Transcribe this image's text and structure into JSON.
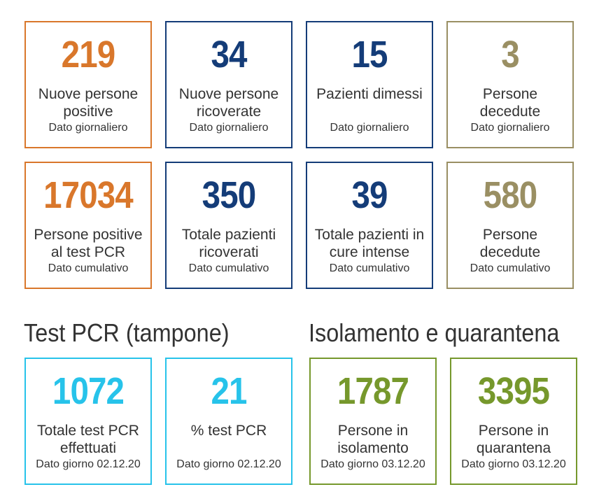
{
  "colors": {
    "orange": "#d9772b",
    "navy": "#143c78",
    "olive": "#9a8f63",
    "cyan": "#27c3ea",
    "green": "#76982c",
    "text": "#333333"
  },
  "daily": [
    {
      "value": "219",
      "label_line1": "Nuove persone",
      "label_line2": "positive",
      "sub": "Dato giornaliero"
    },
    {
      "value": "34",
      "label_line1": "Nuove persone",
      "label_line2": "ricoverate",
      "sub": "Dato giornaliero"
    },
    {
      "value": "15",
      "label_line1": "Pazienti dimessi",
      "label_line2": "",
      "sub": "Dato giornaliero"
    },
    {
      "value": "3",
      "label_line1": "Persone",
      "label_line2": "decedute",
      "sub": "Dato giornaliero"
    }
  ],
  "cumulative": [
    {
      "value": "17034",
      "label_line1": "Persone positive",
      "label_line2": "al test PCR",
      "sub": "Dato cumulativo"
    },
    {
      "value": "350",
      "label_line1": "Totale pazienti",
      "label_line2": "ricoverati",
      "sub": "Dato cumulativo"
    },
    {
      "value": "39",
      "label_line1": "Totale pazienti in",
      "label_line2": "cure intense",
      "sub": "Dato cumulativo"
    },
    {
      "value": "580",
      "label_line1": "Persone",
      "label_line2": "decedute",
      "sub": "Dato cumulativo"
    }
  ],
  "pcr_section": {
    "title": "Test PCR (tampone)",
    "cards": [
      {
        "value": "1072",
        "label_line1": "Totale test PCR",
        "label_line2": "effettuati",
        "sub": "Dato giorno 02.12.20"
      },
      {
        "value": "21",
        "label_line1": "% test PCR",
        "label_line2": "",
        "sub": "Dato giorno 02.12.20"
      }
    ]
  },
  "isolation_section": {
    "title": "Isolamento e quarantena",
    "cards": [
      {
        "value": "1787",
        "label_line1": "Persone in",
        "label_line2": "isolamento",
        "sub": "Dato giorno 03.12.20"
      },
      {
        "value": "3395",
        "label_line1": "Persone in",
        "label_line2": "quarantena",
        "sub": "Dato giorno 03.12.20"
      }
    ]
  }
}
